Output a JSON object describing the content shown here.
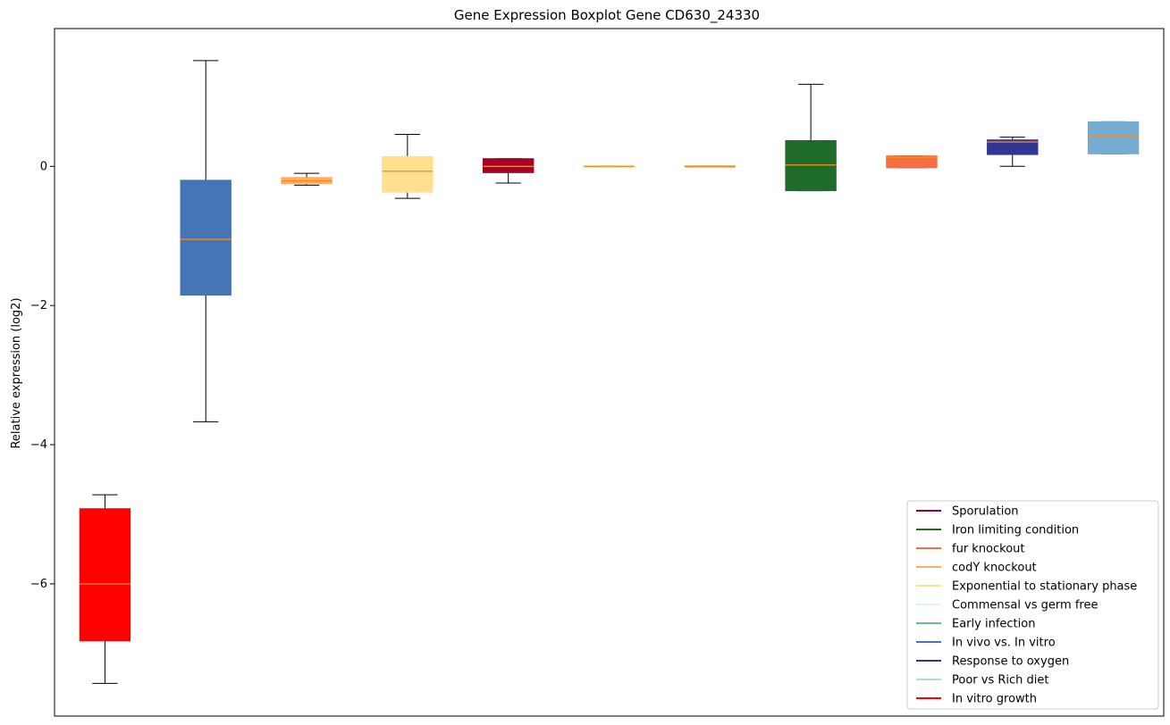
{
  "chart_data": {
    "type": "box",
    "title": "Gene Expression Boxplot Gene CD630_24330",
    "xlabel": "",
    "ylabel": "Relative expression (log2)",
    "ylim": [
      -7.9,
      1.98
    ],
    "yticks": [
      0,
      -2,
      -4,
      -6
    ],
    "ytick_labels": [
      "0",
      "−2",
      "−4",
      "−6"
    ],
    "grid": false,
    "median_color": "#ff8c1a",
    "boxes": [
      {
        "color": "#ff0000",
        "q1": -6.82,
        "median": -6.0,
        "q3": -4.92,
        "whisker_low": -7.43,
        "whisker_high": -4.72
      },
      {
        "color": "#4575b4",
        "q1": -1.85,
        "median": -1.05,
        "q3": -0.2,
        "whisker_low": -3.67,
        "whisker_high": 1.52
      },
      {
        "color": "#fdae61",
        "q1": -0.25,
        "median": -0.21,
        "q3": -0.16,
        "whisker_low": -0.27,
        "whisker_high": -0.1
      },
      {
        "color": "#fee090",
        "q1": -0.37,
        "median": -0.07,
        "q3": 0.14,
        "whisker_low": -0.46,
        "whisker_high": 0.46
      },
      {
        "color": "#a50026",
        "q1": -0.09,
        "median": 0.0,
        "q3": 0.11,
        "whisker_low": -0.24,
        "whisker_high": 0.11
      },
      {
        "color": "#e0f3f8",
        "q1": -0.01,
        "median": 0.0,
        "q3": 0.01,
        "whisker_low": -0.01,
        "whisker_high": 0.01
      },
      {
        "color": "#abd9e9",
        "q1": -0.01,
        "median": 0.0,
        "q3": 0.01,
        "whisker_low": -0.01,
        "whisker_high": 0.01
      },
      {
        "color": "#1f6b2a",
        "q1": -0.35,
        "median": 0.02,
        "q3": 0.37,
        "whisker_low": -0.35,
        "whisker_high": 1.18
      },
      {
        "color": "#f46d43",
        "q1": -0.02,
        "median": 0.13,
        "q3": 0.15,
        "whisker_low": -0.02,
        "whisker_high": 0.15
      },
      {
        "color": "#313695",
        "q1": 0.17,
        "median": 0.35,
        "q3": 0.38,
        "whisker_low": 0.0,
        "whisker_high": 0.42
      },
      {
        "color": "#74add1",
        "q1": 0.18,
        "median": 0.43,
        "q3": 0.64,
        "whisker_low": 0.18,
        "whisker_high": 0.64
      }
    ],
    "legend_position": "lower-right",
    "legend": [
      {
        "label": "Sporulation",
        "color": "#a50026"
      },
      {
        "label": "Iron limiting condition",
        "color": "#1f6b2a"
      },
      {
        "label": "fur knockout",
        "color": "#f46d43"
      },
      {
        "label": "codY knockout",
        "color": "#fdae61"
      },
      {
        "label": "Exponential to stationary phase",
        "color": "#fee090"
      },
      {
        "label": "Commensal vs germ free",
        "color": "#e0f3f8"
      },
      {
        "label": "Early infection",
        "color": "#74add1"
      },
      {
        "label": "In vivo vs. In vitro",
        "color": "#4575b4"
      },
      {
        "label": "Response to oxygen",
        "color": "#313695"
      },
      {
        "label": "Poor vs Rich diet",
        "color": "#abd9e9"
      },
      {
        "label": "In vitro growth",
        "color": "#ff0000"
      }
    ]
  }
}
